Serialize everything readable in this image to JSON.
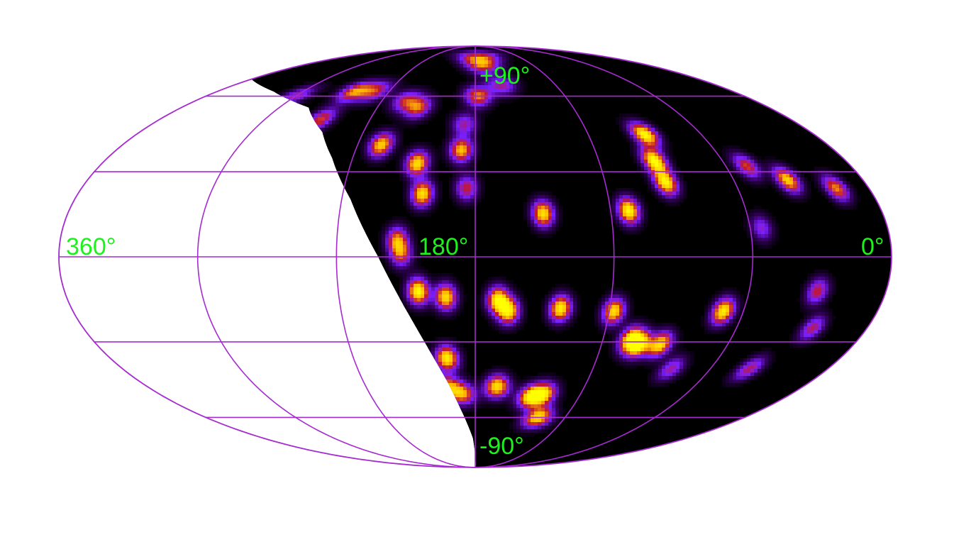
{
  "projection": "mollweide",
  "colormap": [
    "#000000",
    "#7a1fff",
    "#c2182d",
    "#ffd800",
    "#ffff00"
  ],
  "grid_color": "#a52bd0",
  "label_color": "#1cf21c",
  "labels": {
    "lon_left": "360°",
    "lon_center": "180°",
    "lon_right": "0°",
    "lat_top": "+90°",
    "lat_bottom": "-90°"
  },
  "grid": {
    "meridians_deg": [
      0,
      60,
      120,
      180,
      240,
      300,
      360
    ],
    "parallels_deg": [
      -60,
      -30,
      0,
      30,
      60
    ]
  },
  "hotspots": [
    {
      "lon": 90,
      "lat": 44,
      "level": 1.0
    },
    {
      "lon": 93,
      "lat": 34,
      "level": 1.0
    },
    {
      "lon": 92,
      "lat": 26,
      "level": 0.95
    },
    {
      "lon": 112,
      "lat": 16,
      "level": 1.0
    },
    {
      "lon": 150,
      "lat": 15,
      "level": 0.9
    },
    {
      "lon": 208,
      "lat": 33,
      "level": 0.9
    },
    {
      "lon": 187,
      "lat": 38,
      "level": 0.8
    },
    {
      "lon": 228,
      "lat": 40,
      "level": 0.85
    },
    {
      "lon": 178,
      "lat": 60,
      "level": 0.7
    },
    {
      "lon": 204,
      "lat": 22,
      "level": 0.9
    },
    {
      "lon": 205,
      "lat": -12,
      "level": 1.0
    },
    {
      "lon": 193,
      "lat": -14,
      "level": 0.9
    },
    {
      "lon": 170,
      "lat": -15,
      "level": 0.95
    },
    {
      "lon": 165,
      "lat": -19,
      "level": 0.9
    },
    {
      "lon": 142,
      "lat": -18,
      "level": 0.95
    },
    {
      "lon": 118,
      "lat": -19,
      "level": 0.9
    },
    {
      "lon": 69,
      "lat": -19,
      "level": 0.95
    },
    {
      "lon": 107,
      "lat": -29,
      "level": 0.9
    },
    {
      "lon": 102,
      "lat": -31,
      "level": 0.95
    },
    {
      "lon": 92,
      "lat": -31,
      "level": 0.9
    },
    {
      "lon": 194,
      "lat": -36,
      "level": 0.95
    },
    {
      "lon": 168,
      "lat": -47,
      "level": 0.9
    },
    {
      "lon": 195,
      "lat": -47,
      "level": 0.7
    },
    {
      "lon": 187,
      "lat": -50,
      "level": 0.7
    },
    {
      "lon": 148,
      "lat": -51,
      "level": 0.9
    },
    {
      "lon": 141,
      "lat": -50,
      "level": 0.8
    },
    {
      "lon": 138,
      "lat": -60,
      "level": 0.9
    },
    {
      "lon": 35,
      "lat": 27,
      "level": 0.85
    },
    {
      "lon": 15,
      "lat": 24,
      "level": 0.7
    },
    {
      "lon": 50,
      "lat": 32,
      "level": 0.6
    },
    {
      "lon": 268,
      "lat": 50,
      "level": 0.6
    },
    {
      "lon": 264,
      "lat": 62,
      "level": 0.7
    },
    {
      "lon": 215,
      "lat": 55,
      "level": 0.65
    },
    {
      "lon": 186,
      "lat": 48,
      "level": 0.45
    },
    {
      "lon": 184,
      "lat": 24,
      "level": 0.55
    },
    {
      "lon": 214,
      "lat": 6,
      "level": 0.65
    },
    {
      "lon": 212,
      "lat": 1,
      "level": 0.6
    },
    {
      "lon": 30,
      "lat": -12,
      "level": 0.55
    },
    {
      "lon": 25,
      "lat": -25,
      "level": 0.5
    },
    {
      "lon": 40,
      "lat": -40,
      "level": 0.5
    },
    {
      "lon": 160,
      "lat": 65,
      "level": 0.45
    },
    {
      "lon": 172,
      "lat": 75,
      "level": 0.55
    },
    {
      "lon": 250,
      "lat": 62,
      "level": 0.55
    },
    {
      "lon": 300,
      "lat": 60,
      "level": 0.45
    },
    {
      "lon": 225,
      "lat": 58,
      "level": 0.5
    },
    {
      "lon": 176,
      "lat": 80,
      "level": 0.6
    },
    {
      "lon": 55,
      "lat": 10,
      "level": 0.4
    },
    {
      "lon": 80,
      "lat": -40,
      "level": 0.45
    }
  ]
}
